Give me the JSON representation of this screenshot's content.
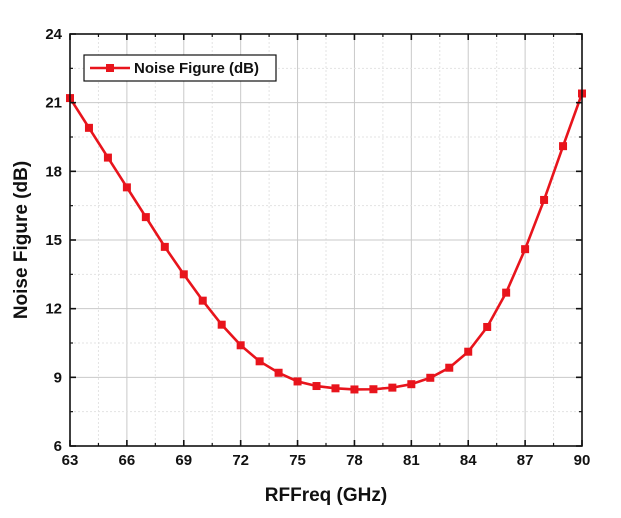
{
  "chart_data": {
    "type": "line",
    "title": "",
    "xlabel": "RFFreq (GHz)",
    "ylabel": "Noise Figure (dB)",
    "xlim": [
      63,
      90
    ],
    "ylim": [
      6,
      24
    ],
    "x_ticks": [
      63,
      66,
      69,
      72,
      75,
      78,
      81,
      84,
      87,
      90
    ],
    "y_ticks": [
      6,
      9,
      12,
      15,
      18,
      21,
      24
    ],
    "x_tick_labels": [
      "63",
      "66",
      "69",
      "72",
      "75",
      "78",
      "81",
      "84",
      "87",
      "90"
    ],
    "y_tick_labels": [
      "6",
      "9",
      "12",
      "15",
      "18",
      "21",
      "24"
    ],
    "grid": true,
    "legend_position": "top-left",
    "x": [
      63,
      64,
      65,
      66,
      67,
      68,
      69,
      70,
      71,
      72,
      73,
      74,
      75,
      76,
      77,
      78,
      79,
      80,
      81,
      82,
      83,
      84,
      85,
      86,
      87,
      88,
      89,
      90
    ],
    "series": [
      {
        "name": "Noise Figure (dB)",
        "color": "#e8141c",
        "marker": "square",
        "values": [
          21.2,
          19.9,
          18.6,
          17.3,
          16.0,
          14.7,
          13.5,
          12.35,
          11.3,
          10.4,
          9.7,
          9.2,
          8.82,
          8.62,
          8.52,
          8.47,
          8.48,
          8.55,
          8.7,
          8.98,
          9.42,
          10.12,
          11.2,
          12.7,
          14.6,
          16.75,
          19.1,
          21.4
        ]
      }
    ]
  }
}
